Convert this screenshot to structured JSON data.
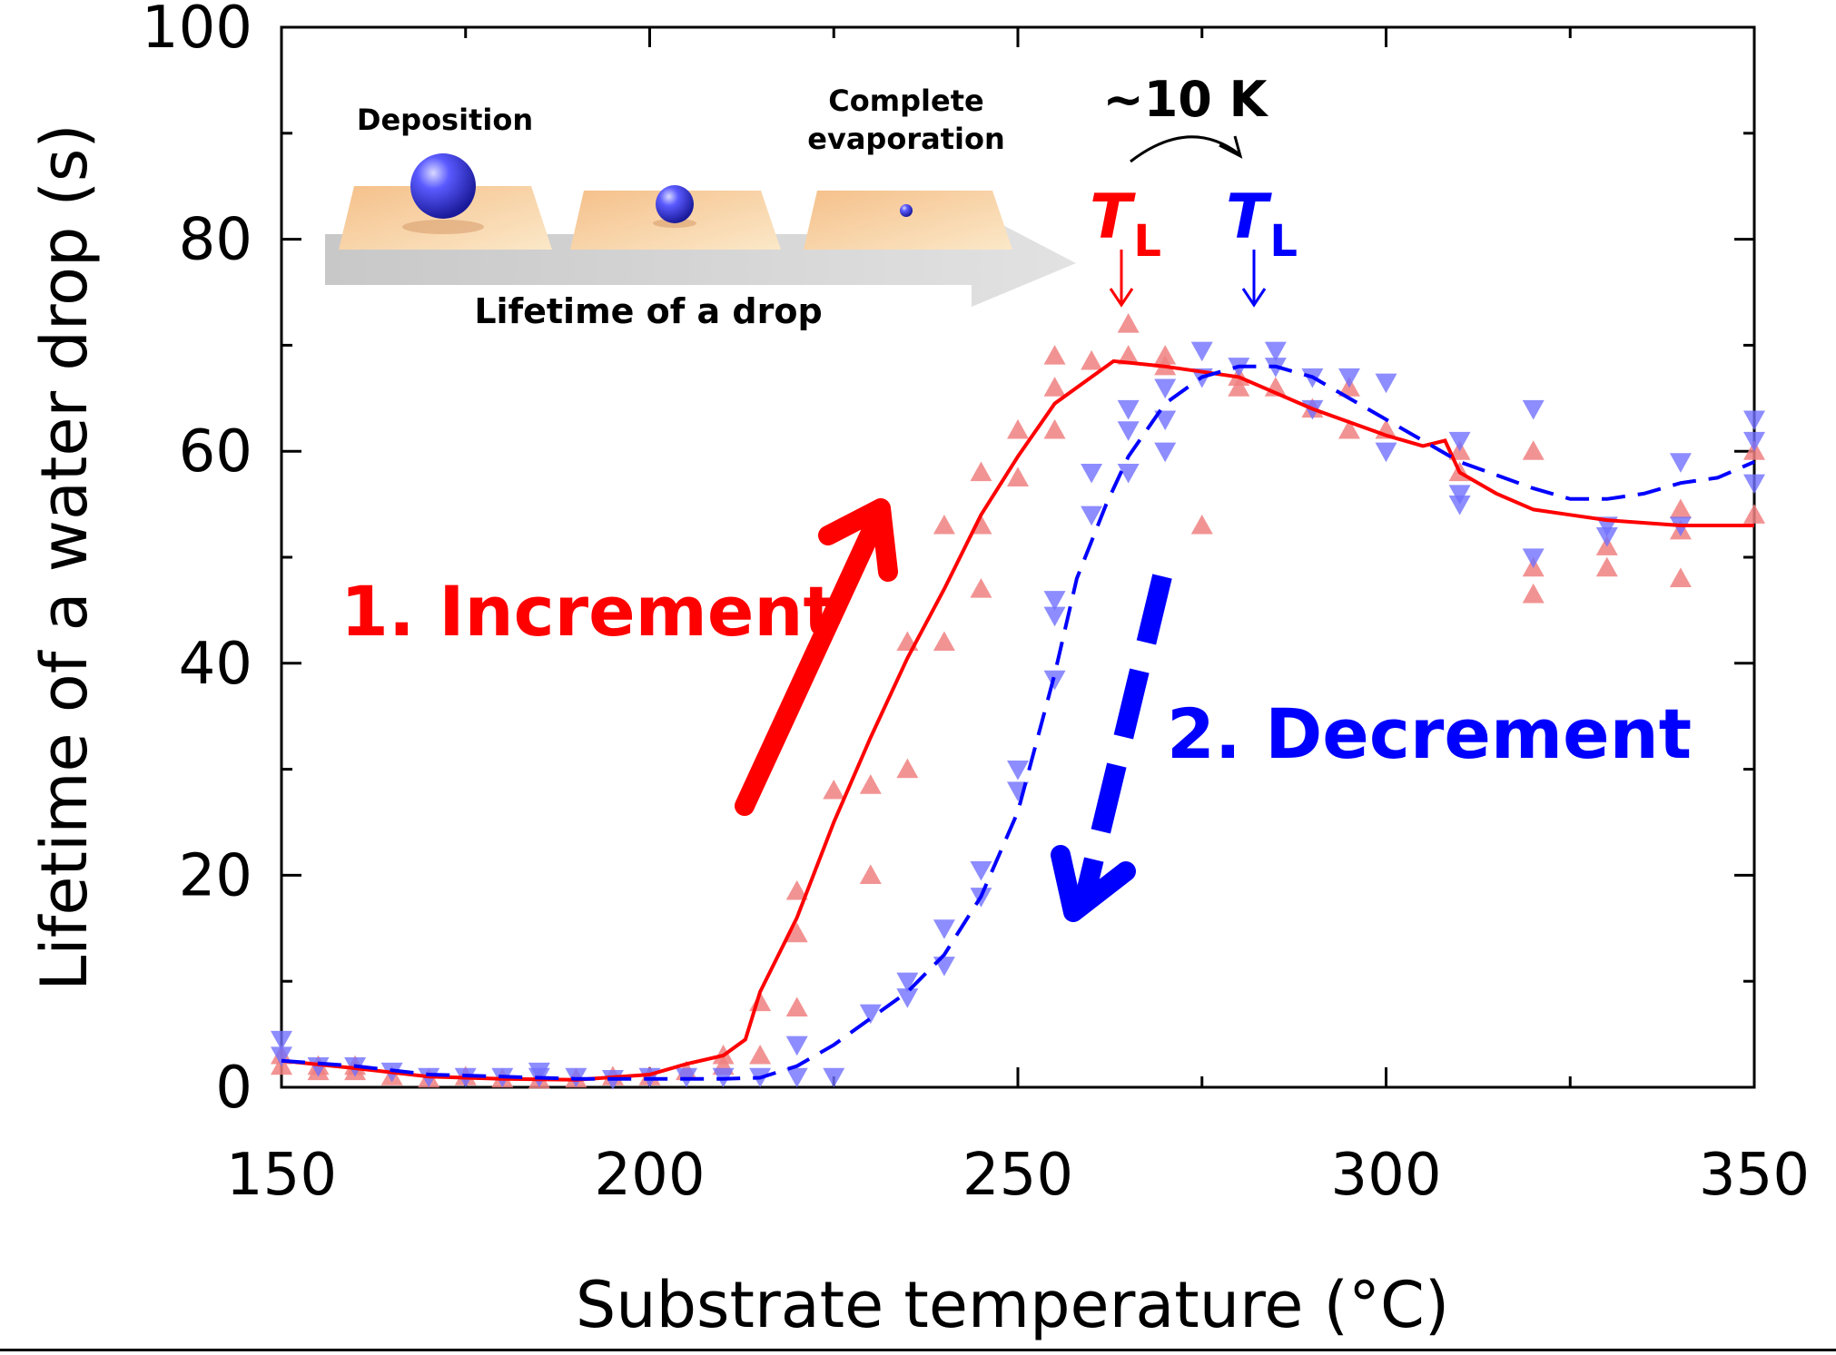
{
  "chart_data": {
    "type": "scatter",
    "xlabel": "Substrate temperature (°C)",
    "ylabel": "Lifetime of a water drop (s)",
    "xlim": [
      150,
      350
    ],
    "ylim": [
      0,
      100
    ],
    "x_ticks": [
      "150",
      "200",
      "250",
      "300",
      "350"
    ],
    "y_ticks": [
      "0",
      "20",
      "40",
      "60",
      "80",
      "100"
    ],
    "grid": false,
    "colors": {
      "increment": "#ff0000",
      "decrement": "#0000ff",
      "increment_points": "#f08080",
      "decrement_points": "#7070ff"
    },
    "series": [
      {
        "name": "1. Increment",
        "marker": "triangle-up",
        "line": "solid",
        "points": [
          [
            150,
            2
          ],
          [
            150,
            3
          ],
          [
            155,
            2
          ],
          [
            155,
            1.5
          ],
          [
            160,
            1.5
          ],
          [
            160,
            2
          ],
          [
            165,
            1
          ],
          [
            170,
            0.8
          ],
          [
            175,
            1
          ],
          [
            180,
            0.8
          ],
          [
            185,
            0.7
          ],
          [
            190,
            0.8
          ],
          [
            195,
            1
          ],
          [
            200,
            1
          ],
          [
            205,
            1.5
          ],
          [
            210,
            2
          ],
          [
            210,
            3
          ],
          [
            215,
            3
          ],
          [
            215,
            8
          ],
          [
            220,
            7.5
          ],
          [
            220,
            14.5
          ],
          [
            220,
            18.5
          ],
          [
            225,
            28
          ],
          [
            230,
            28.5
          ],
          [
            230,
            20
          ],
          [
            235,
            42
          ],
          [
            235,
            30
          ],
          [
            240,
            53
          ],
          [
            240,
            42
          ],
          [
            245,
            58
          ],
          [
            245,
            53
          ],
          [
            245,
            47
          ],
          [
            250,
            57.5
          ],
          [
            250,
            62
          ],
          [
            255,
            69
          ],
          [
            255,
            66
          ],
          [
            255,
            62
          ],
          [
            260,
            68.5
          ],
          [
            265,
            72
          ],
          [
            265,
            69
          ],
          [
            270,
            69
          ],
          [
            270,
            68
          ],
          [
            275,
            53
          ],
          [
            280,
            66
          ],
          [
            280,
            67
          ],
          [
            285,
            66
          ],
          [
            290,
            64
          ],
          [
            295,
            62
          ],
          [
            295,
            66
          ],
          [
            300,
            62
          ],
          [
            310,
            60
          ],
          [
            310,
            58
          ],
          [
            320,
            60
          ],
          [
            320,
            46.5
          ],
          [
            320,
            49
          ],
          [
            330,
            49
          ],
          [
            330,
            51
          ],
          [
            340,
            48
          ],
          [
            340,
            52.5
          ],
          [
            340,
            54.5
          ],
          [
            350,
            54
          ],
          [
            350,
            60
          ]
        ],
        "curve": [
          [
            150,
            2.5
          ],
          [
            160,
            1.8
          ],
          [
            170,
            1
          ],
          [
            180,
            0.8
          ],
          [
            190,
            0.7
          ],
          [
            200,
            1.2
          ],
          [
            205,
            2.2
          ],
          [
            210,
            3
          ],
          [
            213,
            4.5
          ],
          [
            215,
            9
          ],
          [
            220,
            16
          ],
          [
            225,
            25
          ],
          [
            230,
            33
          ],
          [
            235,
            40.5
          ],
          [
            240,
            47
          ],
          [
            245,
            54
          ],
          [
            250,
            59.5
          ],
          [
            255,
            64.5
          ],
          [
            260,
            67
          ],
          [
            263,
            68.5
          ],
          [
            270,
            68
          ],
          [
            280,
            67
          ],
          [
            290,
            64
          ],
          [
            300,
            61.5
          ],
          [
            305,
            60.5
          ],
          [
            308,
            61
          ],
          [
            310,
            58
          ],
          [
            315,
            56
          ],
          [
            320,
            54.5
          ],
          [
            325,
            54
          ],
          [
            330,
            53.5
          ],
          [
            340,
            53
          ],
          [
            345,
            53
          ],
          [
            350,
            53
          ]
        ]
      },
      {
        "name": "2. Decrement",
        "marker": "triangle-down",
        "line": "dashed",
        "points": [
          [
            150,
            4.5
          ],
          [
            150,
            3
          ],
          [
            155,
            2
          ],
          [
            160,
            2
          ],
          [
            165,
            1.5
          ],
          [
            170,
            1
          ],
          [
            175,
            1
          ],
          [
            180,
            1
          ],
          [
            185,
            1.5
          ],
          [
            185,
            1
          ],
          [
            190,
            1
          ],
          [
            195,
            0.8
          ],
          [
            200,
            1
          ],
          [
            205,
            1
          ],
          [
            210,
            1
          ],
          [
            215,
            1
          ],
          [
            220,
            1
          ],
          [
            220,
            4
          ],
          [
            225,
            1
          ],
          [
            230,
            7
          ],
          [
            235,
            8.5
          ],
          [
            235,
            10
          ],
          [
            240,
            11.5
          ],
          [
            240,
            15
          ],
          [
            245,
            18
          ],
          [
            245,
            20.5
          ],
          [
            250,
            28
          ],
          [
            250,
            30
          ],
          [
            255,
            38.5
          ],
          [
            255,
            44.5
          ],
          [
            255,
            46
          ],
          [
            260,
            58
          ],
          [
            260,
            54
          ],
          [
            265,
            64
          ],
          [
            265,
            62
          ],
          [
            265,
            58
          ],
          [
            270,
            66
          ],
          [
            270,
            63
          ],
          [
            270,
            60
          ],
          [
            275,
            69.5
          ],
          [
            275,
            67
          ],
          [
            280,
            68
          ],
          [
            285,
            69.5
          ],
          [
            285,
            68
          ],
          [
            290,
            67
          ],
          [
            290,
            64
          ],
          [
            295,
            67
          ],
          [
            300,
            66.5
          ],
          [
            300,
            60
          ],
          [
            310,
            61
          ],
          [
            310,
            56
          ],
          [
            310,
            55
          ],
          [
            320,
            64
          ],
          [
            320,
            50
          ],
          [
            330,
            53
          ],
          [
            330,
            52
          ],
          [
            340,
            59
          ],
          [
            340,
            53
          ],
          [
            350,
            63
          ],
          [
            350,
            61
          ],
          [
            350,
            57
          ]
        ],
        "curve": [
          [
            150,
            2.5
          ],
          [
            160,
            2
          ],
          [
            170,
            1.2
          ],
          [
            180,
            1
          ],
          [
            190,
            0.8
          ],
          [
            200,
            0.8
          ],
          [
            210,
            0.8
          ],
          [
            215,
            0.9
          ],
          [
            220,
            2
          ],
          [
            225,
            4
          ],
          [
            230,
            6.5
          ],
          [
            235,
            9
          ],
          [
            240,
            12.5
          ],
          [
            245,
            18
          ],
          [
            250,
            26
          ],
          [
            255,
            39
          ],
          [
            258,
            48
          ],
          [
            262,
            55
          ],
          [
            265,
            59.5
          ],
          [
            270,
            64.5
          ],
          [
            275,
            67
          ],
          [
            280,
            68
          ],
          [
            285,
            68
          ],
          [
            290,
            67
          ],
          [
            300,
            63
          ],
          [
            305,
            61
          ],
          [
            310,
            59
          ],
          [
            320,
            56.5
          ],
          [
            325,
            55.5
          ],
          [
            330,
            55.5
          ],
          [
            335,
            56
          ],
          [
            340,
            57
          ],
          [
            345,
            57.5
          ],
          [
            350,
            59
          ]
        ]
      }
    ],
    "annotations": {
      "increment_label": "1. Increment",
      "decrement_label": "2. Decrement",
      "shift": "~10 K",
      "tl_symbol": "T",
      "tl_subscript": "L",
      "tl_increment_x": 265,
      "tl_decrement_x": 283
    },
    "inset": {
      "stage1": "Deposition",
      "stage3_line1": "Complete",
      "stage3_line2": "evaporation",
      "arrow_label": "Lifetime of a drop"
    }
  }
}
